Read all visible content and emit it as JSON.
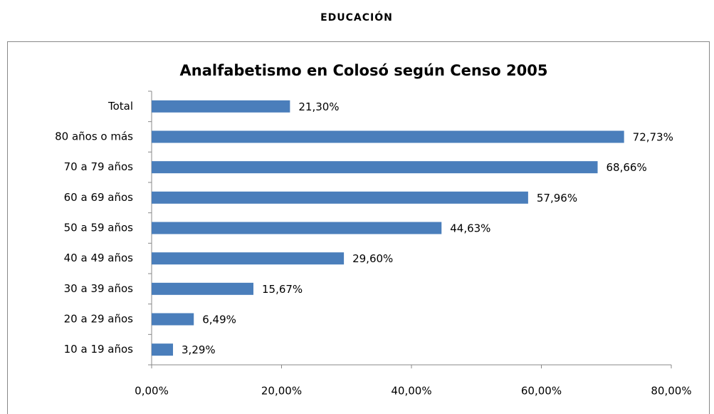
{
  "header": "EDUCACIÓN",
  "chart_data": {
    "type": "bar",
    "orientation": "horizontal",
    "title": "Analfabetismo en Colosó según Censo 2005",
    "categories": [
      "Total",
      "80 años o más",
      "70 a 79 años",
      "60 a 69 años",
      "50 a 59 años",
      "40 a 49 años",
      "30 a 39 años",
      "20 a 29 años",
      "10 a 19 años"
    ],
    "values": [
      21.3,
      72.73,
      68.66,
      57.96,
      44.63,
      29.6,
      15.67,
      6.49,
      3.29
    ],
    "value_labels": [
      "21,30%",
      "72,73%",
      "68,66%",
      "57,96%",
      "44,63%",
      "29,60%",
      "15,67%",
      "6,49%",
      "3,29%"
    ],
    "color": "#4a7ebb",
    "xlim": [
      0,
      80
    ],
    "xticks": [
      {
        "value": 0,
        "label": "0,00%"
      },
      {
        "value": 20,
        "label": "20,00%"
      },
      {
        "value": 40,
        "label": "40,00%"
      },
      {
        "value": 60,
        "label": "60,00%"
      },
      {
        "value": 80,
        "label": "80,00%"
      }
    ],
    "grid": false
  }
}
